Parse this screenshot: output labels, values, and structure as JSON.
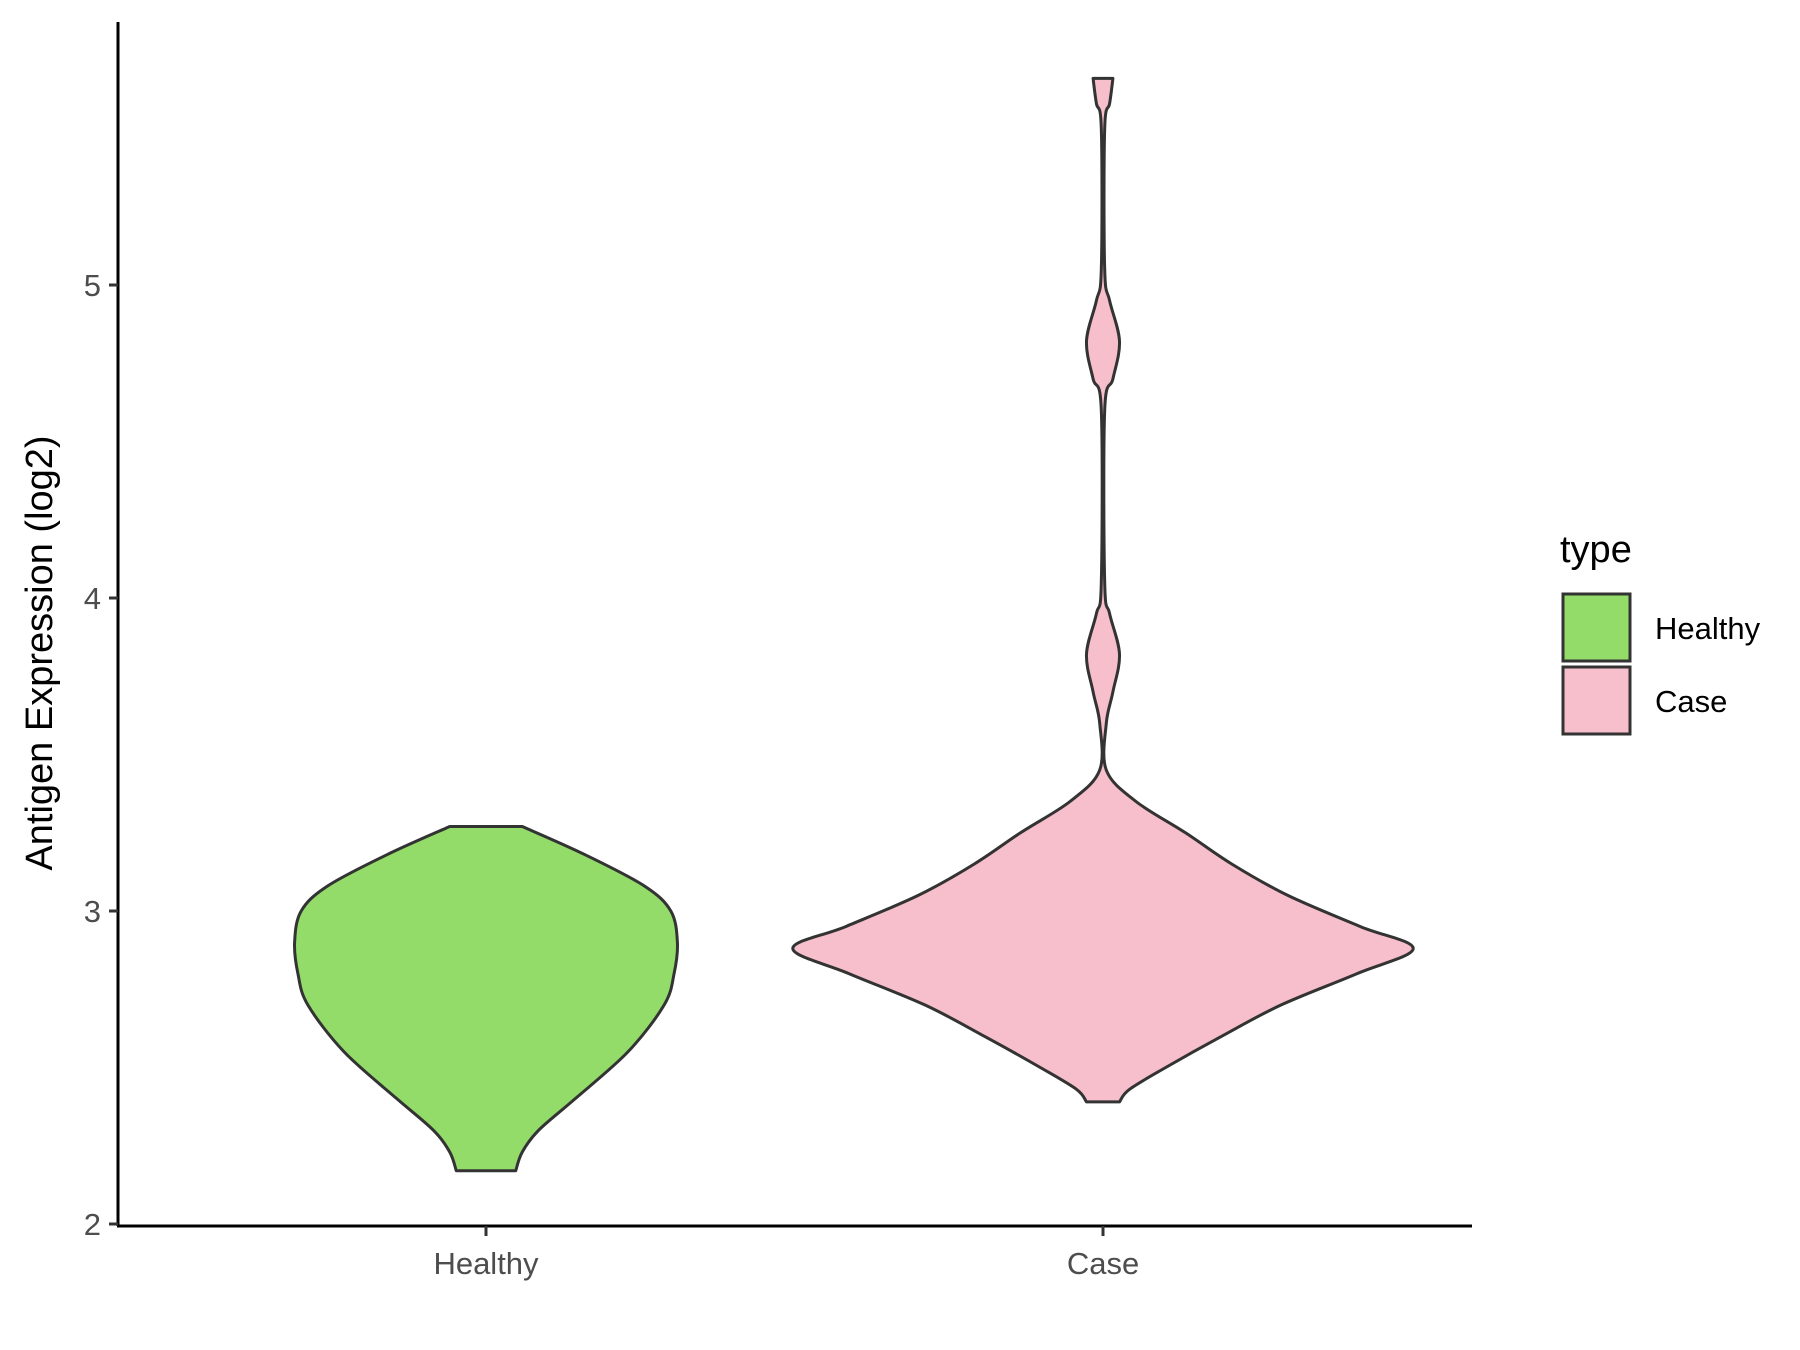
{
  "chart_data": {
    "type": "violin",
    "title": "",
    "xlabel": "",
    "ylabel": "Antigen Expression (log2)",
    "ylim": [
      2,
      5.7
    ],
    "yticks": [
      2,
      3,
      4,
      5
    ],
    "categories": [
      "Healthy",
      "Case"
    ],
    "grid": false,
    "legend": {
      "title": "type",
      "placement": "right",
      "entries": [
        "Healthy",
        "Case"
      ]
    },
    "series": [
      {
        "name": "Healthy",
        "color": "#93dc6a",
        "range": [
          2.17,
          3.27
        ],
        "density": [
          [
            2.17,
            0.09
          ],
          [
            2.23,
            0.11
          ],
          [
            2.3,
            0.16
          ],
          [
            2.4,
            0.27
          ],
          [
            2.55,
            0.43
          ],
          [
            2.7,
            0.54
          ],
          [
            2.8,
            0.57
          ],
          [
            2.9,
            0.58
          ],
          [
            3.0,
            0.56
          ],
          [
            3.08,
            0.48
          ],
          [
            3.18,
            0.3
          ],
          [
            3.27,
            0.11
          ]
        ]
      },
      {
        "name": "Case",
        "color": "#f7bfcb",
        "range": [
          2.39,
          5.66
        ],
        "density": [
          [
            2.39,
            0.05
          ],
          [
            2.43,
            0.08
          ],
          [
            2.5,
            0.19
          ],
          [
            2.6,
            0.36
          ],
          [
            2.7,
            0.54
          ],
          [
            2.8,
            0.77
          ],
          [
            2.88,
            0.94
          ],
          [
            2.95,
            0.78
          ],
          [
            3.05,
            0.56
          ],
          [
            3.15,
            0.39
          ],
          [
            3.25,
            0.25
          ],
          [
            3.35,
            0.1
          ],
          [
            3.45,
            0.01
          ],
          [
            3.6,
            0.01
          ],
          [
            3.7,
            0.03
          ],
          [
            3.82,
            0.05
          ],
          [
            3.95,
            0.02
          ],
          [
            4.05,
            0.005
          ],
          [
            4.6,
            0.005
          ],
          [
            4.7,
            0.03
          ],
          [
            4.82,
            0.05
          ],
          [
            4.95,
            0.02
          ],
          [
            5.05,
            0.005
          ],
          [
            5.5,
            0.005
          ],
          [
            5.58,
            0.02
          ],
          [
            5.66,
            0.03
          ]
        ]
      }
    ]
  }
}
